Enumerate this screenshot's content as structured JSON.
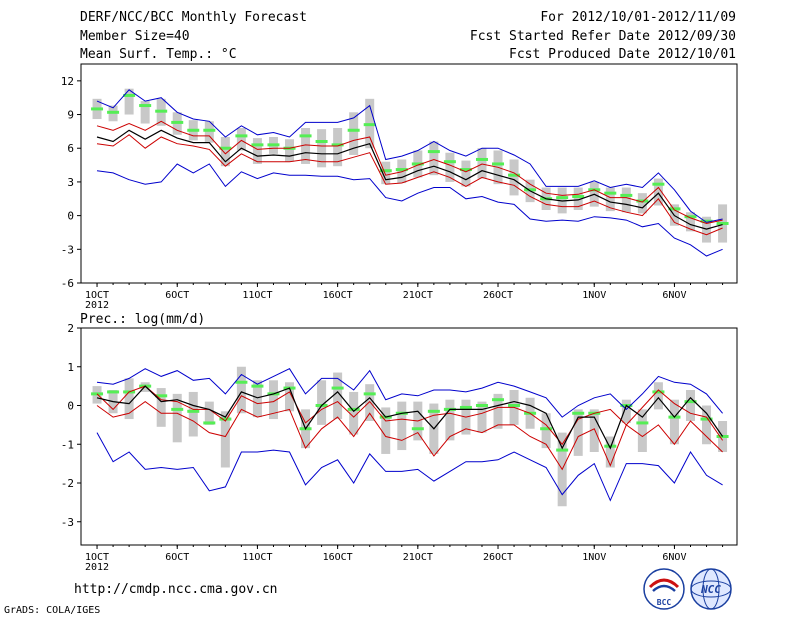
{
  "header": {
    "title": "DERF/NCC/BCC Monthly Forecast",
    "member_size": "Member Size=40",
    "variable": "Mean Surf. Temp.: °C",
    "period": "For 2012/10/01-2012/11/09",
    "started": "Fcst Started Refer Date 2012/09/30",
    "produced": "Fcst Produced Date 2012/10/01"
  },
  "footer": {
    "url": "http://cmdp.ncc.cma.gov.cn",
    "grads": "GrADS: COLA/IGES",
    "logo_bcc": "BCC",
    "logo_ncc": "NCC"
  },
  "colors": {
    "envelope": "#0000cc",
    "spread": "#cc0000",
    "mean": "#000000",
    "box": "#c8c8c8",
    "median": "#55ee55"
  },
  "chart_data": [
    {
      "type": "line",
      "title": "Mean Surf. Temp.: °C",
      "year_label": "2012",
      "x": [
        1,
        2,
        3,
        4,
        5,
        6,
        7,
        8,
        9,
        10,
        11,
        12,
        13,
        14,
        15,
        16,
        17,
        18,
        19,
        20,
        21,
        22,
        23,
        24,
        25,
        26,
        27,
        28,
        29,
        30,
        31,
        32,
        33,
        34,
        35,
        36,
        37,
        38,
        39,
        40
      ],
      "xticks": [
        {
          "x": 1,
          "label": "1OCT"
        },
        {
          "x": 6,
          "label": "6OCT"
        },
        {
          "x": 11,
          "label": "11OCT"
        },
        {
          "x": 16,
          "label": "16OCT"
        },
        {
          "x": 21,
          "label": "21OCT"
        },
        {
          "x": 26,
          "label": "26OCT"
        },
        {
          "x": 32,
          "label": "1NOV"
        },
        {
          "x": 37,
          "label": "6NOV"
        }
      ],
      "xlim": [
        0,
        40.9
      ],
      "yticks": [
        -6,
        -3,
        0,
        3,
        6,
        9,
        12
      ],
      "ylim": [
        -6,
        13.5
      ],
      "series": [
        {
          "name": "max",
          "values": [
            10.2,
            9.6,
            11.2,
            10.2,
            10.5,
            9.2,
            8.6,
            8.4,
            7.0,
            8.0,
            7.2,
            7.4,
            7.0,
            8.3,
            8.3,
            8.3,
            8.7,
            9.8,
            5.0,
            5.3,
            5.8,
            6.6,
            5.8,
            5.3,
            6.0,
            6.0,
            5.4,
            4.6,
            2.6,
            2.6,
            2.6,
            3.1,
            2.5,
            2.8,
            2.5,
            3.8,
            2.3,
            0.4,
            -0.6,
            -0.3
          ]
        },
        {
          "name": "upper_spread",
          "values": [
            8.0,
            7.6,
            8.2,
            7.6,
            8.4,
            7.6,
            7.1,
            7.1,
            5.5,
            6.7,
            5.9,
            6.0,
            6.0,
            6.3,
            6.2,
            6.2,
            6.7,
            7.0,
            3.6,
            3.9,
            4.5,
            5.0,
            4.5,
            3.9,
            4.6,
            4.3,
            3.8,
            2.8,
            2.0,
            1.8,
            1.9,
            2.3,
            1.6,
            1.6,
            1.2,
            2.5,
            0.5,
            -0.2,
            -0.7,
            -0.4
          ]
        },
        {
          "name": "mean",
          "values": [
            7.0,
            6.6,
            7.6,
            6.8,
            7.6,
            6.9,
            6.5,
            6.5,
            4.8,
            6.0,
            5.3,
            5.4,
            5.3,
            5.6,
            5.5,
            5.5,
            6.0,
            6.4,
            3.2,
            3.4,
            4.0,
            4.4,
            3.9,
            3.2,
            4.0,
            3.6,
            3.2,
            2.2,
            1.5,
            1.3,
            1.4,
            1.9,
            1.2,
            1.0,
            0.7,
            2.0,
            0.0,
            -0.8,
            -1.2,
            -0.8
          ]
        },
        {
          "name": "lower_spread",
          "values": [
            6.4,
            6.2,
            7.2,
            6.0,
            7.0,
            6.4,
            6.2,
            5.9,
            4.4,
            5.5,
            4.8,
            4.8,
            4.8,
            5.0,
            4.8,
            4.8,
            5.2,
            5.6,
            2.8,
            2.9,
            3.4,
            3.9,
            3.4,
            2.6,
            3.4,
            3.0,
            2.7,
            1.7,
            1.0,
            0.8,
            0.8,
            1.3,
            0.7,
            0.3,
            0.0,
            1.5,
            -0.6,
            -1.2,
            -1.7,
            -1.1
          ]
        },
        {
          "name": "min",
          "values": [
            4.0,
            3.8,
            3.2,
            2.8,
            3.0,
            4.6,
            3.8,
            4.6,
            2.6,
            3.9,
            3.3,
            3.8,
            3.6,
            3.6,
            3.5,
            3.5,
            3.2,
            3.3,
            1.6,
            1.3,
            2.0,
            2.5,
            2.5,
            1.5,
            1.7,
            1.2,
            1.0,
            -0.3,
            -0.5,
            -0.4,
            -0.5,
            -0.1,
            -0.2,
            -0.4,
            -1.0,
            -0.7,
            -2.0,
            -2.6,
            -3.6,
            -3.0
          ]
        }
      ],
      "box_lo": [
        8.6,
        8.4,
        9.0,
        8.2,
        8.0,
        7.2,
        6.7,
        6.5,
        4.4,
        5.8,
        4.6,
        5.5,
        4.8,
        4.6,
        4.3,
        4.4,
        5.4,
        6.0,
        2.8,
        2.9,
        3.4,
        3.6,
        3.0,
        2.6,
        3.3,
        2.8,
        1.8,
        1.2,
        0.5,
        0.2,
        0.5,
        0.8,
        0.4,
        0.3,
        0.2,
        0.9,
        -0.9,
        -1.4,
        -2.4,
        -2.4
      ],
      "box_hi": [
        10.4,
        9.8,
        11.3,
        10.2,
        10.4,
        9.2,
        8.5,
        8.4,
        7.0,
        7.8,
        6.9,
        7.0,
        6.8,
        7.8,
        7.7,
        7.8,
        9.2,
        10.4,
        4.8,
        5.0,
        5.8,
        6.6,
        5.6,
        4.9,
        6.0,
        5.8,
        5.0,
        3.2,
        2.5,
        2.5,
        2.5,
        3.0,
        2.5,
        2.5,
        2.0,
        3.3,
        1.0,
        0.3,
        -0.1,
        1.0
      ],
      "median": [
        9.5,
        9.2,
        10.7,
        9.8,
        9.3,
        8.3,
        7.6,
        7.6,
        6.0,
        7.1,
        6.3,
        6.3,
        6.0,
        7.1,
        6.6,
        6.3,
        7.6,
        8.1,
        4.0,
        4.1,
        4.6,
        5.7,
        4.8,
        4.1,
        5.0,
        4.6,
        3.6,
        2.3,
        1.5,
        1.6,
        1.7,
        2.3,
        2.0,
        1.8,
        1.3,
        2.8,
        0.6,
        -0.1,
        -0.5,
        -0.7
      ]
    },
    {
      "type": "line",
      "title": "Prec.: log(mm/d)",
      "year_label": "2012",
      "x": [
        1,
        2,
        3,
        4,
        5,
        6,
        7,
        8,
        9,
        10,
        11,
        12,
        13,
        14,
        15,
        16,
        17,
        18,
        19,
        20,
        21,
        22,
        23,
        24,
        25,
        26,
        27,
        28,
        29,
        30,
        31,
        32,
        33,
        34,
        35,
        36,
        37,
        38,
        39,
        40
      ],
      "xticks": [
        {
          "x": 1,
          "label": "1OCT"
        },
        {
          "x": 6,
          "label": "6OCT"
        },
        {
          "x": 11,
          "label": "11OCT"
        },
        {
          "x": 16,
          "label": "16OCT"
        },
        {
          "x": 21,
          "label": "21OCT"
        },
        {
          "x": 26,
          "label": "26OCT"
        },
        {
          "x": 32,
          "label": "1NOV"
        },
        {
          "x": 37,
          "label": "6NOV"
        }
      ],
      "xlim": [
        0,
        40.9
      ],
      "yticks": [
        -3,
        -2,
        -1,
        0,
        1,
        2
      ],
      "ylim": [
        -3.6,
        2
      ],
      "series": [
        {
          "name": "max",
          "values": [
            0.6,
            0.55,
            0.7,
            0.95,
            0.75,
            0.9,
            0.65,
            0.7,
            0.3,
            0.8,
            0.55,
            0.75,
            0.95,
            0.3,
            0.7,
            0.7,
            0.4,
            0.9,
            0.15,
            0.3,
            0.25,
            0.4,
            0.4,
            0.35,
            0.45,
            0.6,
            0.5,
            0.35,
            0.2,
            -0.3,
            0.0,
            0.2,
            0.3,
            -0.1,
            0.3,
            0.75,
            0.6,
            0.55,
            0.3,
            -0.2
          ]
        },
        {
          "name": "upper_spread",
          "values": [
            0.3,
            -0.1,
            0.35,
            0.5,
            0.15,
            0.1,
            -0.1,
            -0.1,
            -0.4,
            0.25,
            0.05,
            0.1,
            0.35,
            -0.45,
            -0.1,
            0.1,
            -0.3,
            0.1,
            -0.4,
            -0.35,
            -0.4,
            -0.25,
            -0.2,
            -0.3,
            -0.2,
            -0.05,
            -0.05,
            -0.2,
            -0.5,
            -1.0,
            -0.35,
            -0.2,
            -0.1,
            -0.5,
            -0.05,
            0.4,
            0.05,
            -0.2,
            -0.3,
            -0.9
          ]
        },
        {
          "name": "mean",
          "values": [
            0.2,
            0.1,
            0.05,
            0.5,
            0.1,
            0.15,
            0.0,
            -0.1,
            -0.3,
            0.35,
            0.2,
            0.3,
            0.45,
            -0.6,
            0.0,
            0.35,
            -0.15,
            0.2,
            -0.3,
            -0.2,
            -0.15,
            -0.6,
            -0.1,
            -0.1,
            -0.1,
            0.0,
            0.1,
            0.0,
            -0.2,
            -1.1,
            -0.3,
            -0.3,
            -1.1,
            0.0,
            -0.3,
            0.2,
            -0.3,
            0.2,
            -0.2,
            -0.8
          ]
        },
        {
          "name": "lower_spread",
          "values": [
            0.0,
            -0.3,
            -0.2,
            0.1,
            -0.2,
            -0.2,
            -0.4,
            -0.7,
            -0.8,
            -0.1,
            -0.3,
            -0.2,
            -0.1,
            -1.1,
            -0.6,
            -0.3,
            -0.8,
            -0.2,
            -0.8,
            -0.9,
            -0.7,
            -1.3,
            -0.8,
            -0.6,
            -0.7,
            -0.5,
            -0.5,
            -0.8,
            -1.0,
            -1.65,
            -0.8,
            -0.6,
            -1.55,
            -0.5,
            -0.8,
            -0.5,
            -1.0,
            -0.4,
            -0.8,
            -1.2
          ]
        },
        {
          "name": "min",
          "values": [
            -0.7,
            -1.45,
            -1.2,
            -1.65,
            -1.6,
            -1.65,
            -1.6,
            -2.2,
            -2.1,
            -1.2,
            -1.2,
            -1.15,
            -1.2,
            -2.05,
            -1.6,
            -1.4,
            -2.0,
            -1.25,
            -1.7,
            -1.7,
            -1.65,
            -1.95,
            -1.7,
            -1.45,
            -1.45,
            -1.4,
            -1.2,
            -1.4,
            -1.6,
            -2.3,
            -1.8,
            -1.5,
            -2.45,
            -1.5,
            -1.5,
            -1.55,
            -2.0,
            -1.2,
            -1.8,
            -2.05
          ]
        }
      ],
      "box_lo": [
        0.05,
        -0.2,
        -0.35,
        0.35,
        -0.55,
        -0.95,
        -0.8,
        -0.5,
        -1.6,
        -0.2,
        -0.3,
        -0.35,
        -0.15,
        -1.1,
        -0.5,
        -0.35,
        -0.75,
        -0.4,
        -1.25,
        -1.15,
        -0.9,
        -1.25,
        -0.9,
        -0.75,
        -0.7,
        -0.6,
        -0.5,
        -0.6,
        -1.1,
        -2.6,
        -1.3,
        -1.2,
        -1.6,
        -0.45,
        -1.2,
        -0.1,
        -1.0,
        -0.4,
        -1.0,
        -1.2
      ],
      "box_hi": [
        0.5,
        0.4,
        0.7,
        0.6,
        0.45,
        0.3,
        0.35,
        0.1,
        -0.15,
        1.0,
        0.65,
        0.65,
        0.6,
        -0.1,
        0.65,
        0.85,
        0.35,
        0.55,
        -0.05,
        0.1,
        0.1,
        0.05,
        0.15,
        0.15,
        0.1,
        0.3,
        0.4,
        0.2,
        -0.2,
        -0.7,
        -0.1,
        -0.1,
        -0.8,
        0.15,
        -0.1,
        0.6,
        0.15,
        0.4,
        0.0,
        -0.4
      ],
      "median": [
        0.3,
        0.35,
        0.35,
        0.5,
        0.25,
        -0.1,
        -0.15,
        -0.45,
        -0.35,
        0.6,
        0.5,
        0.3,
        0.45,
        -0.6,
        0.0,
        0.45,
        -0.1,
        0.3,
        -0.3,
        -0.2,
        -0.6,
        -0.15,
        -0.1,
        -0.05,
        0.0,
        0.15,
        0.0,
        -0.2,
        -0.6,
        -1.15,
        -0.2,
        -0.2,
        -1.05,
        0.0,
        -0.45,
        0.35,
        -0.3,
        0.1,
        -0.35,
        -0.8
      ]
    }
  ]
}
